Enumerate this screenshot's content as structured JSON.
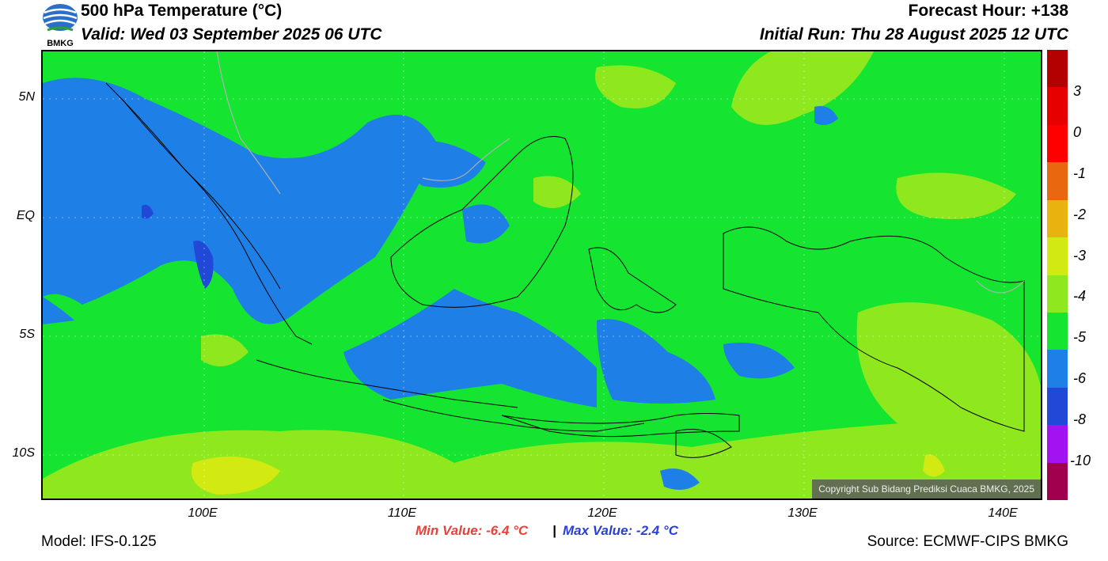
{
  "header": {
    "title": "500 hPa Temperature (°C)",
    "valid": "Valid: Wed 03 September 2025 06 UTC",
    "forecast_hour": "Forecast Hour: +138",
    "initial_run": "Initial Run: Thu 28 August 2025 12 UTC",
    "logo_text": "BMKG"
  },
  "map": {
    "lat_labels": [
      "5N",
      "EQ",
      "5S",
      "10S"
    ],
    "lon_labels": [
      "100E",
      "110E",
      "120E",
      "130E",
      "140E"
    ],
    "copyright": "Copyright Sub Bidang Prediksi Cuaca BMKG, 2025",
    "colors": {
      "blue_region": "#1e7fe6",
      "green_region": "#15e530",
      "yellowgreen_region": "#8fe81e",
      "yellow_region": "#d3ea12",
      "dark_blue": "#2149d8"
    }
  },
  "colorbar": {
    "labels": [
      "3",
      "0",
      "-1",
      "-2",
      "-3",
      "-4",
      "-5",
      "-6",
      "-8",
      "-10"
    ],
    "colors": [
      "#b30000",
      "#e60000",
      "#ff0000",
      "#e8670f",
      "#e8b20f",
      "#d3ea12",
      "#8fe81e",
      "#15e530",
      "#1e7fe6",
      "#2149d8",
      "#a312f0",
      "#a0004e"
    ]
  },
  "footer": {
    "model": "Model: IFS-0.125",
    "min_value": "Min Value: -6.4 °C",
    "separator": "|",
    "max_value": "Max Value: -2.4 °C",
    "source": "Source: ECMWF-CIPS BMKG"
  }
}
